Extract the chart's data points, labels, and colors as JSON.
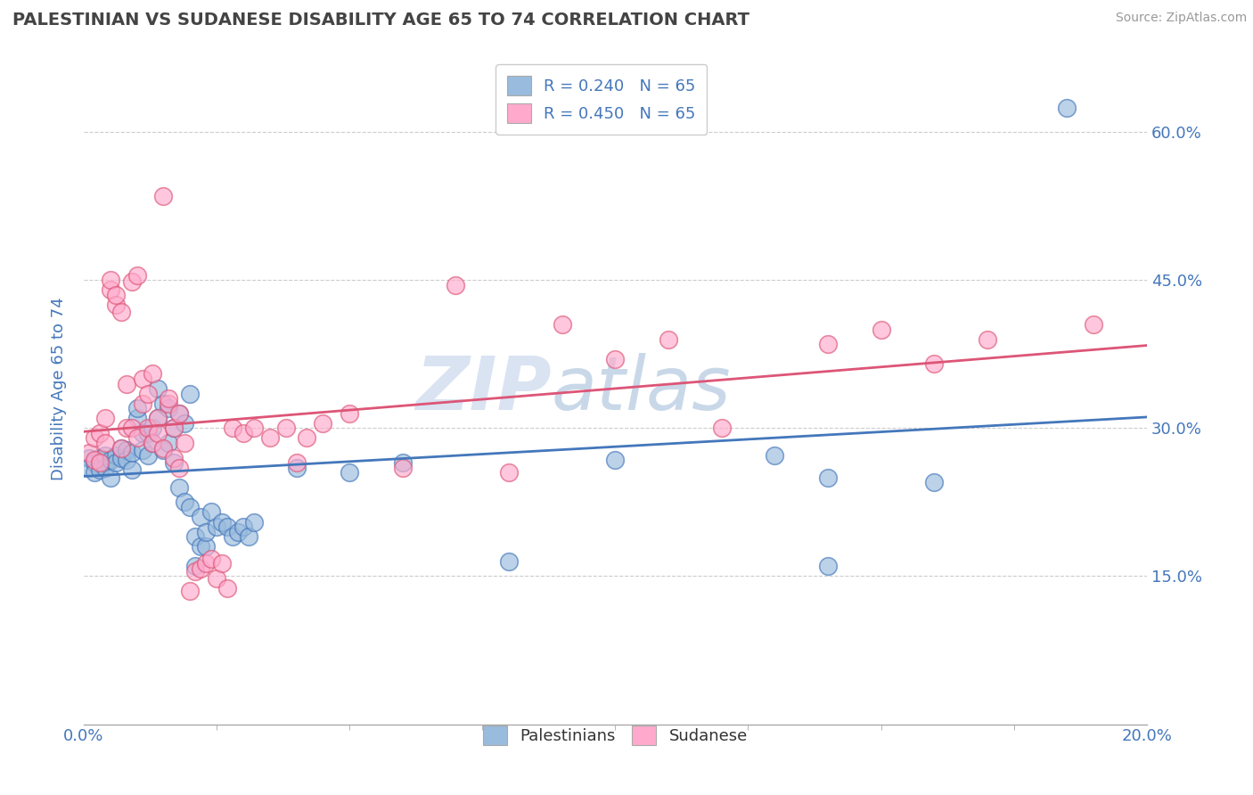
{
  "title": "PALESTINIAN VS SUDANESE DISABILITY AGE 65 TO 74 CORRELATION CHART",
  "source": "Source: ZipAtlas.com",
  "ylabel": "Disability Age 65 to 74",
  "legend_blue": "R = 0.240   N = 65",
  "legend_pink": "R = 0.450   N = 65",
  "legend_bottom_blue": "Palestinians",
  "legend_bottom_pink": "Sudanese",
  "blue_color": "#99BBDD",
  "pink_color": "#FFAACC",
  "blue_line_color": "#4477BB",
  "pink_line_color": "#DD5577",
  "blue_scatter": [
    [
      0.001,
      0.27
    ],
    [
      0.001,
      0.26
    ],
    [
      0.002,
      0.265
    ],
    [
      0.002,
      0.255
    ],
    [
      0.003,
      0.27
    ],
    [
      0.003,
      0.258
    ],
    [
      0.004,
      0.272
    ],
    [
      0.004,
      0.26
    ],
    [
      0.005,
      0.268
    ],
    [
      0.005,
      0.25
    ],
    [
      0.006,
      0.272
    ],
    [
      0.006,
      0.265
    ],
    [
      0.007,
      0.27
    ],
    [
      0.007,
      0.28
    ],
    [
      0.008,
      0.278
    ],
    [
      0.008,
      0.268
    ],
    [
      0.009,
      0.275
    ],
    [
      0.009,
      0.258
    ],
    [
      0.01,
      0.31
    ],
    [
      0.01,
      0.32
    ],
    [
      0.011,
      0.295
    ],
    [
      0.011,
      0.278
    ],
    [
      0.012,
      0.295
    ],
    [
      0.012,
      0.272
    ],
    [
      0.013,
      0.3
    ],
    [
      0.013,
      0.285
    ],
    [
      0.014,
      0.34
    ],
    [
      0.014,
      0.31
    ],
    [
      0.015,
      0.325
    ],
    [
      0.015,
      0.278
    ],
    [
      0.016,
      0.32
    ],
    [
      0.016,
      0.285
    ],
    [
      0.017,
      0.3
    ],
    [
      0.017,
      0.265
    ],
    [
      0.018,
      0.315
    ],
    [
      0.018,
      0.24
    ],
    [
      0.019,
      0.305
    ],
    [
      0.019,
      0.225
    ],
    [
      0.02,
      0.335
    ],
    [
      0.02,
      0.22
    ],
    [
      0.021,
      0.16
    ],
    [
      0.021,
      0.19
    ],
    [
      0.022,
      0.18
    ],
    [
      0.022,
      0.21
    ],
    [
      0.023,
      0.18
    ],
    [
      0.023,
      0.195
    ],
    [
      0.024,
      0.215
    ],
    [
      0.025,
      0.2
    ],
    [
      0.026,
      0.205
    ],
    [
      0.027,
      0.2
    ],
    [
      0.028,
      0.19
    ],
    [
      0.029,
      0.195
    ],
    [
      0.03,
      0.2
    ],
    [
      0.031,
      0.19
    ],
    [
      0.032,
      0.205
    ],
    [
      0.04,
      0.26
    ],
    [
      0.05,
      0.255
    ],
    [
      0.06,
      0.265
    ],
    [
      0.08,
      0.165
    ],
    [
      0.1,
      0.268
    ],
    [
      0.13,
      0.272
    ],
    [
      0.14,
      0.25
    ],
    [
      0.16,
      0.245
    ],
    [
      0.185,
      0.625
    ],
    [
      0.14,
      0.16
    ]
  ],
  "pink_scatter": [
    [
      0.001,
      0.275
    ],
    [
      0.002,
      0.29
    ],
    [
      0.002,
      0.268
    ],
    [
      0.003,
      0.295
    ],
    [
      0.003,
      0.265
    ],
    [
      0.004,
      0.31
    ],
    [
      0.004,
      0.285
    ],
    [
      0.005,
      0.44
    ],
    [
      0.005,
      0.45
    ],
    [
      0.006,
      0.425
    ],
    [
      0.006,
      0.435
    ],
    [
      0.007,
      0.418
    ],
    [
      0.007,
      0.28
    ],
    [
      0.008,
      0.3
    ],
    [
      0.008,
      0.345
    ],
    [
      0.009,
      0.3
    ],
    [
      0.009,
      0.448
    ],
    [
      0.01,
      0.455
    ],
    [
      0.01,
      0.29
    ],
    [
      0.011,
      0.325
    ],
    [
      0.011,
      0.35
    ],
    [
      0.012,
      0.335
    ],
    [
      0.012,
      0.3
    ],
    [
      0.013,
      0.355
    ],
    [
      0.013,
      0.285
    ],
    [
      0.014,
      0.31
    ],
    [
      0.014,
      0.295
    ],
    [
      0.015,
      0.535
    ],
    [
      0.015,
      0.28
    ],
    [
      0.016,
      0.325
    ],
    [
      0.016,
      0.33
    ],
    [
      0.017,
      0.3
    ],
    [
      0.017,
      0.27
    ],
    [
      0.018,
      0.315
    ],
    [
      0.018,
      0.26
    ],
    [
      0.019,
      0.285
    ],
    [
      0.02,
      0.135
    ],
    [
      0.021,
      0.155
    ],
    [
      0.022,
      0.158
    ],
    [
      0.023,
      0.163
    ],
    [
      0.024,
      0.168
    ],
    [
      0.025,
      0.148
    ],
    [
      0.026,
      0.163
    ],
    [
      0.027,
      0.138
    ],
    [
      0.028,
      0.3
    ],
    [
      0.03,
      0.295
    ],
    [
      0.032,
      0.3
    ],
    [
      0.035,
      0.29
    ],
    [
      0.038,
      0.3
    ],
    [
      0.04,
      0.265
    ],
    [
      0.042,
      0.29
    ],
    [
      0.045,
      0.305
    ],
    [
      0.05,
      0.315
    ],
    [
      0.06,
      0.26
    ],
    [
      0.07,
      0.445
    ],
    [
      0.08,
      0.255
    ],
    [
      0.09,
      0.405
    ],
    [
      0.1,
      0.37
    ],
    [
      0.11,
      0.39
    ],
    [
      0.12,
      0.3
    ],
    [
      0.14,
      0.385
    ],
    [
      0.15,
      0.4
    ],
    [
      0.16,
      0.365
    ],
    [
      0.17,
      0.39
    ],
    [
      0.19,
      0.405
    ]
  ],
  "xmin": 0.0,
  "xmax": 0.2,
  "ymin": 0.0,
  "ymax": 0.68,
  "yticks": [
    0.15,
    0.3,
    0.45,
    0.6
  ],
  "watermark_zip": "ZIP",
  "watermark_atlas": "atlas",
  "background_color": "#FFFFFF",
  "grid_color": "#CCCCCC",
  "title_color": "#444444",
  "axis_label_color": "#4477BB",
  "tick_color": "#4477BB"
}
